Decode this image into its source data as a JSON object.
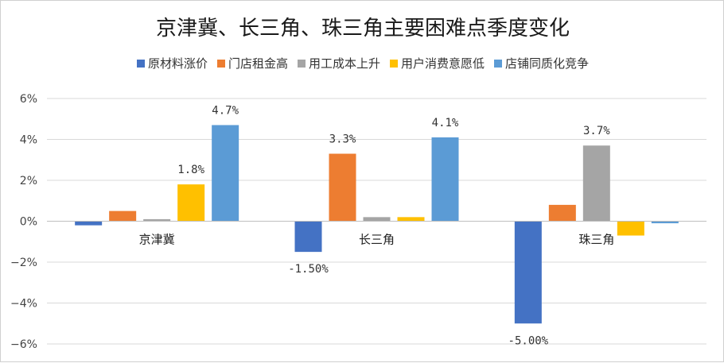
{
  "chart_data": {
    "type": "bar",
    "title": "京津冀、长三角、珠三角主要困难点季度变化",
    "categories": [
      "京津冀",
      "长三角",
      "珠三角"
    ],
    "series": [
      {
        "name": "原材料涨价",
        "color": "#4472C4",
        "values": [
          -0.2,
          -1.5,
          -5.0
        ]
      },
      {
        "name": "门店租金高",
        "color": "#ED7D31",
        "values": [
          0.5,
          3.3,
          0.8
        ]
      },
      {
        "name": "用工成本上升",
        "color": "#A5A5A5",
        "values": [
          0.1,
          0.2,
          3.7
        ]
      },
      {
        "name": "用户消费意愿低",
        "color": "#FFC000",
        "values": [
          1.8,
          0.2,
          -0.7
        ]
      },
      {
        "name": "店铺同质化竞争",
        "color": "#5B9BD5",
        "values": [
          4.7,
          4.1,
          -0.1
        ]
      }
    ],
    "data_labels": [
      {
        "series": 4,
        "category": 0,
        "text": "4.7%"
      },
      {
        "series": 3,
        "category": 0,
        "text": "1.8%"
      },
      {
        "series": 1,
        "category": 1,
        "text": "3.3%"
      },
      {
        "series": 4,
        "category": 1,
        "text": "4.1%"
      },
      {
        "series": 0,
        "category": 1,
        "text": "-1.50%"
      },
      {
        "series": 2,
        "category": 2,
        "text": "3.7%"
      },
      {
        "series": 0,
        "category": 2,
        "text": "-5.00%"
      }
    ],
    "ylim": [
      -6,
      6
    ],
    "yticks": [
      6,
      4,
      2,
      0,
      -2,
      -4,
      -6
    ],
    "ytick_labels": [
      "6%",
      "4%",
      "2%",
      "0%",
      "−2%",
      "−4%",
      "−6%"
    ],
    "grid": true,
    "legend_position": "top"
  }
}
